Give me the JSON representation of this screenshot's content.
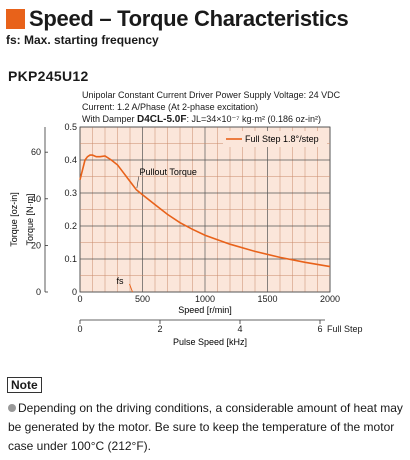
{
  "header": {
    "title": "Speed – Torque Characteristics",
    "subtitle": "fs: Max. starting frequency",
    "model": "PKP245U12",
    "accent_color": "#e8621a"
  },
  "conditions": {
    "line1": "Unipolar Constant Current Driver  Power Supply Voltage: 24 VDC",
    "line2": "Current: 1.2 A/Phase (At 2-phase excitation)",
    "line3_prefix": "With Damper ",
    "line3_damper": "D4CL-5.0F",
    "line3_suffix": ": JL=34×10⁻⁷ kg·m² (0.186 oz-in²)"
  },
  "chart_data": {
    "type": "line",
    "x": [
      0,
      20,
      40,
      60,
      80,
      100,
      130,
      160,
      200,
      250,
      300,
      350,
      400,
      450,
      500,
      600,
      700,
      800,
      900,
      1000,
      1200,
      1400,
      1600,
      1800,
      2000
    ],
    "series": [
      {
        "name": "Full Step 1.8°/step",
        "values": [
          0.34,
          0.37,
          0.4,
          0.41,
          0.415,
          0.415,
          0.41,
          0.41,
          0.412,
          0.4,
          0.385,
          0.36,
          0.335,
          0.31,
          0.295,
          0.265,
          0.235,
          0.21,
          0.19,
          0.172,
          0.145,
          0.123,
          0.105,
          0.09,
          0.077
        ],
        "color": "#e8621a"
      }
    ],
    "xlabel": "Speed [r/min]",
    "xlim": [
      0,
      2000
    ],
    "x_ticks": [
      "0",
      "500",
      "1000",
      "1500",
      "2000"
    ],
    "x2label": "Pulse Speed [kHz]",
    "x2_ticks": [
      "0",
      "2",
      "4",
      "6"
    ],
    "x2_ticks_extra": "Full Step",
    "ylabel": "Torque [N·m]",
    "ylim": [
      0,
      0.5
    ],
    "y_ticks": [
      "0",
      "0.1",
      "0.2",
      "0.3",
      "0.4",
      "0.5"
    ],
    "y2label": "Torque [oz-in]",
    "y2_ticks": [
      "0",
      "20",
      "40",
      "60"
    ],
    "annotation": "Pullout Torque",
    "fs_label": "fs",
    "grid": true,
    "legend_position": "top-right",
    "plot_background": "#fbe6da"
  },
  "note": {
    "label": "Note",
    "text": "Depending on the driving conditions, a considerable amount of heat may be generated by the motor. Be sure to keep the temperature of the motor case under 100°C (212°F)."
  }
}
